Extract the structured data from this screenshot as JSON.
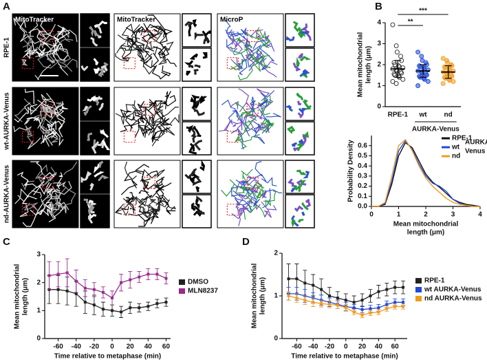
{
  "panel_labels": [
    "A",
    "B",
    "C",
    "D"
  ],
  "panel_a": {
    "columns": [
      "MitoTracker",
      "MitoTracker",
      "MicroP"
    ],
    "rows": [
      "RPE-1",
      "wt-AURKA-Venus",
      "nd-AURKA-Venus"
    ]
  },
  "chart_data": [
    {
      "type": "dot",
      "y_label": [
        "Mean mitochondrial",
        "length (μm)"
      ],
      "categories": [
        "RPE-1",
        "wt",
        "nd"
      ],
      "group_label": "AURKA-Venus",
      "group": [
        "wt",
        "nd"
      ],
      "colors": [
        "#222222",
        "#1f48d8",
        "#f39a1e"
      ],
      "values": [
        1.8,
        1.7,
        1.65
      ],
      "errors": [
        0.4,
        0.3,
        0.3
      ],
      "points": [
        [
          3.9,
          2.9,
          2.6,
          2.4,
          2.2,
          2.1,
          2.0,
          1.95,
          1.9,
          1.85,
          1.8,
          1.75,
          1.7,
          1.65,
          1.6,
          1.55,
          1.5,
          1.45,
          1.4,
          1.3,
          1.2,
          1.1
        ],
        [
          2.6,
          2.4,
          2.2,
          2.1,
          2.0,
          1.95,
          1.9,
          1.85,
          1.8,
          1.75,
          1.7,
          1.65,
          1.6,
          1.55,
          1.5,
          1.45,
          1.4,
          1.35,
          1.3,
          1.2,
          1.0
        ],
        [
          2.3,
          2.2,
          2.1,
          2.0,
          1.95,
          1.9,
          1.85,
          1.8,
          1.75,
          1.7,
          1.65,
          1.6,
          1.55,
          1.5,
          1.45,
          1.4,
          1.35,
          1.3,
          1.25,
          1.2,
          1.1
        ]
      ],
      "significance": [
        {
          "label": "**",
          "from": "RPE-1",
          "to": "wt"
        },
        {
          "label": "***",
          "from": "RPE-1",
          "to": "nd"
        }
      ],
      "ylim": [
        0,
        4
      ],
      "yticks": [
        0,
        1,
        2,
        3,
        4
      ]
    },
    {
      "type": "line",
      "x_label": [
        "Mean mitochondrial",
        "length (μm)"
      ],
      "y_label": [
        "Probability Density"
      ],
      "x": [
        0,
        0.25,
        0.5,
        0.75,
        1,
        1.25,
        1.5,
        1.75,
        2,
        2.25,
        2.5,
        2.75,
        3,
        3.25,
        3.5,
        3.75,
        4
      ],
      "series": [
        {
          "name": "RPE-1",
          "color": "#111111",
          "values": [
            0,
            0,
            0.02,
            0.22,
            0.5,
            0.63,
            0.58,
            0.45,
            0.32,
            0.24,
            0.19,
            0.13,
            0.07,
            0.04,
            0.02,
            0.01,
            0
          ]
        },
        {
          "name": "wt",
          "color": "#1f48d8",
          "values": [
            0,
            0,
            0.03,
            0.25,
            0.55,
            0.65,
            0.56,
            0.42,
            0.3,
            0.23,
            0.2,
            0.15,
            0.07,
            0.03,
            0.01,
            0,
            0
          ]
        },
        {
          "name": "nd",
          "color": "#f39a1e",
          "values": [
            0,
            0,
            0.04,
            0.3,
            0.6,
            0.66,
            0.55,
            0.4,
            0.28,
            0.2,
            0.14,
            0.08,
            0.04,
            0.02,
            0.01,
            0,
            0
          ]
        }
      ],
      "legend_note": [
        "AURKA-",
        "Venus"
      ],
      "xlim": [
        0,
        4
      ],
      "xticks": [
        0,
        1,
        2,
        3,
        4
      ],
      "ylim": [
        0,
        0.7
      ],
      "yticks": [
        {
          "value": 0,
          "label": "0.0"
        },
        0.1,
        0.2,
        0.3,
        0.4,
        0.5,
        0.6
      ]
    },
    {
      "type": "errorline",
      "x_label": [
        "Time relative to metaphase (min)"
      ],
      "y_label": [
        "Mean mitochondrial",
        "length (μm)"
      ],
      "x": [
        -70,
        -60,
        -50,
        -40,
        -30,
        -20,
        -10,
        0,
        10,
        20,
        30,
        40,
        50,
        60
      ],
      "series": [
        {
          "name": "DMSO",
          "color": "#222222",
          "values": [
            1.75,
            1.75,
            1.7,
            1.6,
            1.3,
            1.2,
            1.05,
            1.0,
            0.95,
            1.1,
            1.1,
            1.15,
            1.25,
            1.3
          ],
          "errors": [
            0.5,
            0.5,
            0.5,
            0.45,
            0.4,
            0.35,
            0.25,
            0.2,
            0.2,
            0.2,
            0.15,
            0.15,
            0.15,
            0.15
          ]
        },
        {
          "name": "MLN8237",
          "color": "#9b2a8e",
          "values": [
            2.25,
            2.3,
            2.35,
            2.05,
            1.8,
            1.75,
            1.65,
            1.45,
            2.0,
            2.1,
            2.2,
            2.3,
            2.3,
            2.15
          ],
          "errors": [
            0.5,
            0.45,
            0.5,
            0.4,
            0.3,
            0.25,
            0.2,
            0.25,
            0.3,
            0.3,
            0.2,
            0.2,
            0.2,
            0.2
          ]
        }
      ],
      "xlim": [
        -75,
        65
      ],
      "xticks": [
        -60,
        -40,
        -20,
        0,
        20,
        40,
        60
      ],
      "ylim": [
        0,
        3
      ],
      "yticks": [
        0,
        1,
        2,
        3
      ]
    },
    {
      "type": "errorline",
      "x_label": [
        "Time relative to metaphase (min)"
      ],
      "y_label": [
        "Mean mitochondrial",
        "length (μm)"
      ],
      "x": [
        -70,
        -60,
        -50,
        -40,
        -30,
        -20,
        -10,
        0,
        10,
        20,
        30,
        40,
        50,
        60,
        70
      ],
      "series": [
        {
          "name": "RPE-1",
          "color": "#222222",
          "values": [
            1.4,
            1.4,
            1.3,
            1.25,
            1.15,
            1.0,
            0.95,
            0.9,
            0.85,
            0.9,
            1.0,
            1.1,
            1.15,
            1.2,
            1.2
          ],
          "errors": [
            0.35,
            0.35,
            0.3,
            0.25,
            0.25,
            0.2,
            0.15,
            0.15,
            0.15,
            0.15,
            0.15,
            0.15,
            0.15,
            0.15,
            0.15
          ]
        },
        {
          "name": "wt AURKA-Venus",
          "color": "#1f48d8",
          "values": [
            1.05,
            1.05,
            1.0,
            0.95,
            0.9,
            0.85,
            0.8,
            0.75,
            0.72,
            0.68,
            0.7,
            0.72,
            0.8,
            0.85,
            0.85
          ],
          "errors": [
            0.15,
            0.15,
            0.15,
            0.12,
            0.12,
            0.1,
            0.1,
            0.1,
            0.08,
            0.08,
            0.08,
            0.08,
            0.08,
            0.08,
            0.08
          ]
        },
        {
          "name": "nd AURKA-Venus",
          "color": "#f39a1e",
          "values": [
            1.0,
            0.95,
            0.9,
            0.85,
            0.82,
            0.8,
            0.78,
            0.72,
            0.62,
            0.55,
            0.6,
            0.62,
            0.7,
            0.75,
            0.75
          ],
          "errors": [
            0.1,
            0.1,
            0.1,
            0.1,
            0.08,
            0.08,
            0.08,
            0.08,
            0.06,
            0.06,
            0.06,
            0.06,
            0.06,
            0.06,
            0.06
          ]
        }
      ],
      "xlim": [
        -78,
        75
      ],
      "xticks": [
        -60,
        -40,
        -20,
        0,
        20,
        40,
        60
      ],
      "ylim": [
        0,
        2
      ],
      "yticks": [
        0,
        1,
        2
      ]
    }
  ]
}
